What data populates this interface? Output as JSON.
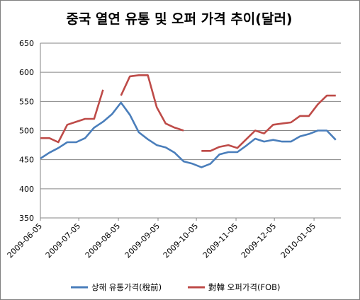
{
  "chart_data": {
    "type": "line",
    "title": "중국 열연 유통 및 오퍼 가격 추이(달러)",
    "xlabel": "",
    "ylabel": "",
    "ylim": [
      350,
      650
    ],
    "yticks": [
      350,
      400,
      450,
      500,
      550,
      600,
      650
    ],
    "grid": true,
    "legend_position": "bottom",
    "x_tick_labels": [
      "2009-06-05",
      "2009-07-05",
      "2009-08-05",
      "2009-09-05",
      "2009-10-05",
      "2009-11-05",
      "2009-12-05",
      "2010-01-05"
    ],
    "series": [
      {
        "name": "상해 유통가격(稅前)",
        "color": "#4a7ebb",
        "points": [
          [
            "2009-06-05",
            452
          ],
          [
            "2009-06-12",
            462
          ],
          [
            "2009-06-19",
            470
          ],
          [
            "2009-06-26",
            480
          ],
          [
            "2009-07-03",
            480
          ],
          [
            "2009-07-10",
            487
          ],
          [
            "2009-07-17",
            505
          ],
          [
            "2009-07-24",
            515
          ],
          [
            "2009-07-31",
            528
          ],
          [
            "2009-08-07",
            548
          ],
          [
            "2009-08-14",
            527
          ],
          [
            "2009-08-21",
            497
          ],
          [
            "2009-08-28",
            485
          ],
          [
            "2009-09-04",
            475
          ],
          [
            "2009-09-11",
            471
          ],
          [
            "2009-09-18",
            462
          ],
          [
            "2009-09-25",
            447
          ],
          [
            "2009-10-02",
            443
          ],
          [
            "2009-10-09",
            437
          ],
          [
            "2009-10-16",
            443
          ],
          [
            "2009-10-23",
            459
          ],
          [
            "2009-10-30",
            463
          ],
          [
            "2009-11-06",
            463
          ],
          [
            "2009-11-13",
            474
          ],
          [
            "2009-11-20",
            486
          ],
          [
            "2009-11-27",
            481
          ],
          [
            "2009-12-04",
            484
          ],
          [
            "2009-12-11",
            481
          ],
          [
            "2009-12-18",
            481
          ],
          [
            "2009-12-25",
            490
          ],
          [
            "2010-01-01",
            494
          ],
          [
            "2010-01-08",
            500
          ],
          [
            "2010-01-15",
            500
          ],
          [
            "2010-01-22",
            484
          ]
        ]
      },
      {
        "name": "對韓 오퍼가격(FOB)",
        "color": "#be4b48",
        "segments": [
          [
            [
              "2009-06-05",
              487
            ],
            [
              "2009-06-12",
              487
            ],
            [
              "2009-06-19",
              480
            ],
            [
              "2009-06-26",
              510
            ],
            [
              "2009-07-03",
              515
            ],
            [
              "2009-07-10",
              520
            ],
            [
              "2009-07-17",
              520
            ],
            [
              "2009-07-24",
              570
            ]
          ],
          [
            [
              "2009-08-07",
              560
            ],
            [
              "2009-08-14",
              593
            ],
            [
              "2009-08-21",
              595
            ],
            [
              "2009-08-28",
              595
            ],
            [
              "2009-09-04",
              540
            ],
            [
              "2009-09-11",
              512
            ],
            [
              "2009-09-18",
              505
            ],
            [
              "2009-09-25",
              500
            ]
          ],
          [
            [
              "2009-10-09",
              465
            ],
            [
              "2009-10-16",
              465
            ],
            [
              "2009-10-23",
              472
            ],
            [
              "2009-10-30",
              475
            ],
            [
              "2009-11-06",
              470
            ],
            [
              "2009-11-13",
              485
            ],
            [
              "2009-11-20",
              500
            ],
            [
              "2009-11-27",
              495
            ],
            [
              "2009-12-04",
              510
            ],
            [
              "2009-12-11",
              512
            ],
            [
              "2009-12-18",
              514
            ],
            [
              "2009-12-25",
              525
            ],
            [
              "2010-01-01",
              525
            ],
            [
              "2010-01-08",
              545
            ],
            [
              "2010-01-15",
              560
            ],
            [
              "2010-01-22",
              560
            ]
          ]
        ]
      }
    ]
  }
}
